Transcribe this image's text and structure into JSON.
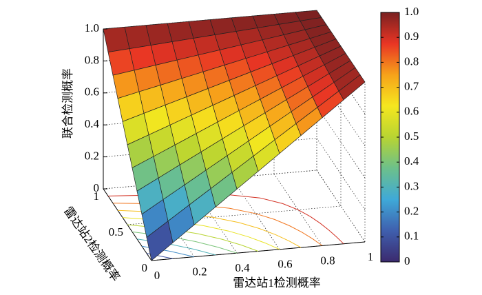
{
  "chart_data": {
    "type": "surface",
    "xlabel": "雷达站1检测概率",
    "ylabel": "雷达站2检测概率",
    "zlabel": "联合检测概率",
    "x": [
      0,
      0.1,
      0.2,
      0.3,
      0.4,
      0.5,
      0.6,
      0.7,
      0.8,
      0.9,
      1
    ],
    "y": [
      0,
      0.1,
      0.2,
      0.3,
      0.4,
      0.5,
      0.6,
      0.7,
      0.8,
      0.9,
      1
    ],
    "z": [
      [
        0,
        0.1,
        0.2,
        0.3,
        0.4,
        0.5,
        0.6,
        0.7,
        0.8,
        0.9,
        1
      ],
      [
        0.1,
        0.19,
        0.28,
        0.37,
        0.46,
        0.55,
        0.64,
        0.73,
        0.82,
        0.91,
        1
      ],
      [
        0.2,
        0.28,
        0.36,
        0.44,
        0.52,
        0.6,
        0.68,
        0.76,
        0.84,
        0.92,
        1
      ],
      [
        0.3,
        0.37,
        0.44,
        0.51,
        0.58,
        0.65,
        0.72,
        0.79,
        0.86,
        0.93,
        1
      ],
      [
        0.4,
        0.46,
        0.52,
        0.58,
        0.64,
        0.7,
        0.76,
        0.82,
        0.88,
        0.94,
        1
      ],
      [
        0.5,
        0.55,
        0.6,
        0.65,
        0.7,
        0.75,
        0.8,
        0.85,
        0.9,
        0.95,
        1
      ],
      [
        0.6,
        0.64,
        0.68,
        0.72,
        0.76,
        0.8,
        0.84,
        0.88,
        0.92,
        0.96,
        1
      ],
      [
        0.7,
        0.73,
        0.76,
        0.79,
        0.82,
        0.85,
        0.88,
        0.91,
        0.94,
        0.97,
        1
      ],
      [
        0.8,
        0.82,
        0.84,
        0.86,
        0.88,
        0.9,
        0.92,
        0.94,
        0.96,
        0.98,
        1
      ],
      [
        0.9,
        0.91,
        0.92,
        0.93,
        0.94,
        0.95,
        0.96,
        0.97,
        0.98,
        0.99,
        1
      ],
      [
        1,
        1,
        1,
        1,
        1,
        1,
        1,
        1,
        1,
        1,
        1
      ]
    ],
    "contour_levels": [
      0.1,
      0.2,
      0.3,
      0.4,
      0.5,
      0.6,
      0.7,
      0.8,
      0.9
    ],
    "xlim": [
      0,
      1
    ],
    "ylim": [
      0,
      1
    ],
    "zlim": [
      0,
      1
    ],
    "xticks": [
      0,
      0.2,
      0.4,
      0.6,
      0.8,
      1
    ],
    "yticks": [
      0,
      0.5,
      1
    ],
    "zticks": [
      0,
      0.2,
      0.4,
      0.6,
      0.8,
      {
        "value": 1,
        "label": "1.0"
      }
    ],
    "clim": [
      0,
      1
    ],
    "cticks": [
      0,
      0.1,
      0.2,
      0.3,
      0.4,
      0.5,
      0.6,
      0.7,
      0.8,
      0.9,
      {
        "value": 1,
        "label": "1.0"
      }
    ],
    "colormap": [
      "#3b2a6e",
      "#3f5fae",
      "#3fa9d8",
      "#6cc08b",
      "#b8d432",
      "#f5e71f",
      "#f7a21a",
      "#e93524",
      "#7a2121"
    ],
    "grid": true
  }
}
